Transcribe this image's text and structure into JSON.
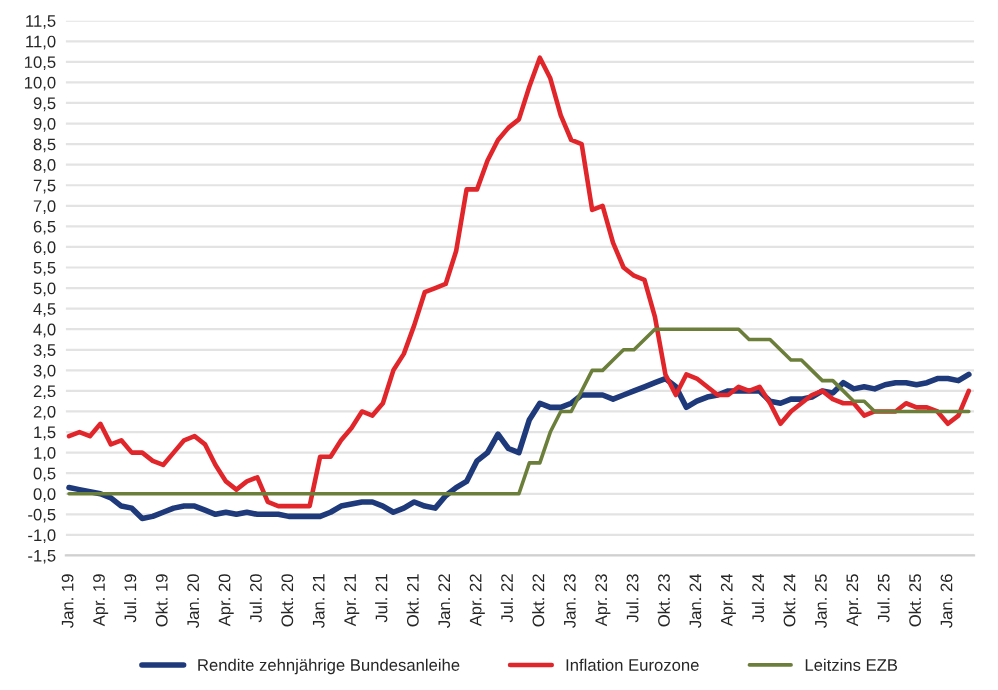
{
  "chart_data": {
    "type": "line",
    "categories": [
      "Jan. 19",
      null,
      null,
      "Apr. 19",
      null,
      null,
      "Jul. 19",
      null,
      null,
      "Okt. 19",
      null,
      null,
      "Jan. 20",
      null,
      null,
      "Apr. 20",
      null,
      null,
      "Jul. 20",
      null,
      null,
      "Okt. 20",
      null,
      null,
      "Jan. 21",
      null,
      null,
      "Apr. 21",
      null,
      null,
      "Jul. 21",
      null,
      null,
      "Okt. 21",
      null,
      null,
      "Jan. 22",
      null,
      null,
      "Apr. 22",
      null,
      null,
      "Jul. 22",
      null,
      null,
      "Okt. 22",
      null,
      null,
      "Jan. 23",
      null,
      null,
      "Apr. 23",
      null,
      null,
      "Jul. 23",
      null,
      null,
      "Okt. 23",
      null,
      null,
      "Jan. 24",
      null,
      null,
      "Apr. 24",
      null,
      null,
      "Jul. 24",
      null,
      null,
      "Okt. 24",
      null,
      null,
      "Jan. 25",
      null,
      null,
      "Apr. 25",
      null,
      null,
      "Jul. 25",
      null,
      null,
      "Okt. 25",
      null,
      null,
      "Jan. 26",
      null,
      null
    ],
    "series": [
      {
        "name": "Rendite zehnjährige Bundesanleihe",
        "color": "#1f3a7a",
        "values": [
          0.15,
          0.1,
          0.05,
          0.0,
          -0.1,
          -0.3,
          -0.35,
          -0.6,
          -0.55,
          -0.45,
          -0.35,
          -0.3,
          -0.3,
          -0.4,
          -0.5,
          -0.45,
          -0.5,
          -0.45,
          -0.5,
          -0.5,
          -0.5,
          -0.55,
          -0.55,
          -0.55,
          -0.55,
          -0.45,
          -0.3,
          -0.25,
          -0.2,
          -0.2,
          -0.3,
          -0.45,
          -0.35,
          -0.2,
          -0.3,
          -0.35,
          -0.05,
          0.15,
          0.3,
          0.8,
          1.0,
          1.45,
          1.1,
          1.0,
          1.8,
          2.2,
          2.1,
          2.1,
          2.2,
          2.4,
          2.4,
          2.4,
          2.3,
          2.4,
          2.5,
          2.6,
          2.7,
          2.8,
          2.6,
          2.1,
          2.25,
          2.35,
          2.4,
          2.5,
          2.5,
          2.5,
          2.5,
          2.25,
          2.2,
          2.3,
          2.3,
          2.35,
          2.5,
          2.45,
          2.7,
          2.55,
          2.6,
          2.55,
          2.65,
          2.7,
          2.7,
          2.65,
          2.7,
          2.8,
          2.8,
          2.75,
          2.9
        ]
      },
      {
        "name": "Inflation Eurozone",
        "color": "#e0262a",
        "values": [
          1.4,
          1.5,
          1.4,
          1.7,
          1.2,
          1.3,
          1.0,
          1.0,
          0.8,
          0.7,
          1.0,
          1.3,
          1.4,
          1.2,
          0.7,
          0.3,
          0.1,
          0.3,
          0.4,
          -0.2,
          -0.3,
          -0.3,
          -0.3,
          -0.3,
          0.9,
          0.9,
          1.3,
          1.6,
          2.0,
          1.9,
          2.2,
          3.0,
          3.4,
          4.1,
          4.9,
          5.0,
          5.1,
          5.9,
          7.4,
          7.4,
          8.1,
          8.6,
          8.9,
          9.1,
          9.9,
          10.6,
          10.1,
          9.2,
          8.6,
          8.5,
          6.9,
          7.0,
          6.1,
          5.5,
          5.3,
          5.2,
          4.3,
          2.9,
          2.4,
          2.9,
          2.8,
          2.6,
          2.4,
          2.4,
          2.6,
          2.5,
          2.6,
          2.2,
          1.7,
          2.0,
          2.2,
          2.4,
          2.5,
          2.3,
          2.2,
          2.2,
          1.9,
          2.0,
          2.0,
          2.0,
          2.2,
          2.1,
          2.1,
          2.0,
          1.7,
          1.9,
          2.5
        ]
      },
      {
        "name": "Leitzins EZB",
        "color": "#6b7f3b",
        "values": [
          0,
          0,
          0,
          0,
          0,
          0,
          0,
          0,
          0,
          0,
          0,
          0,
          0,
          0,
          0,
          0,
          0,
          0,
          0,
          0,
          0,
          0,
          0,
          0,
          0,
          0,
          0,
          0,
          0,
          0,
          0,
          0,
          0,
          0,
          0,
          0,
          0,
          0,
          0,
          0,
          0,
          0,
          0,
          0,
          0.75,
          0.75,
          1.5,
          2.0,
          2.0,
          2.5,
          3.0,
          3.0,
          3.25,
          3.5,
          3.5,
          3.75,
          4.0,
          4.0,
          4.0,
          4.0,
          4.0,
          4.0,
          4.0,
          4.0,
          4.0,
          3.75,
          3.75,
          3.75,
          3.5,
          3.25,
          3.25,
          3.0,
          2.75,
          2.75,
          2.5,
          2.25,
          2.25,
          2.0,
          2.0,
          2.0,
          2.0,
          2.0,
          2.0,
          2.0,
          2.0,
          2.0,
          2.0
        ]
      }
    ],
    "ylim": [
      -1.5,
      11.5
    ],
    "yticks": [
      {
        "value": -1.5,
        "label": "-1,5"
      },
      {
        "value": -1.0,
        "label": "-1,0"
      },
      {
        "value": -0.5,
        "label": "-0,5"
      },
      {
        "value": 0.0,
        "label": "0,0"
      },
      {
        "value": 0.5,
        "label": "0,5"
      },
      {
        "value": 1.0,
        "label": "1,0"
      },
      {
        "value": 1.5,
        "label": "1,5"
      },
      {
        "value": 2.0,
        "label": "2,0"
      },
      {
        "value": 2.5,
        "label": "2,5"
      },
      {
        "value": 3.0,
        "label": "3,0"
      },
      {
        "value": 3.5,
        "label": "3,5"
      },
      {
        "value": 4.0,
        "label": "4,0"
      },
      {
        "value": 4.5,
        "label": "4,5"
      },
      {
        "value": 5.0,
        "label": "5,0"
      },
      {
        "value": 5.5,
        "label": "5,5"
      },
      {
        "value": 6.0,
        "label": "6,0"
      },
      {
        "value": 6.5,
        "label": "6,5"
      },
      {
        "value": 7.0,
        "label": "7,0"
      },
      {
        "value": 7.5,
        "label": "7,5"
      },
      {
        "value": 8.0,
        "label": "8,0"
      },
      {
        "value": 8.5,
        "label": "8,5"
      },
      {
        "value": 9.0,
        "label": "9,0"
      },
      {
        "value": 9.5,
        "label": "9,5"
      },
      {
        "value": 10.0,
        "label": "10,0"
      },
      {
        "value": 10.5,
        "label": "10,5"
      },
      {
        "value": 11.0,
        "label": "11,0"
      },
      {
        "value": 11.5,
        "label": "11,5"
      }
    ],
    "grid": "y",
    "legend": "bottom",
    "marker": "none",
    "line_style": "solid"
  }
}
